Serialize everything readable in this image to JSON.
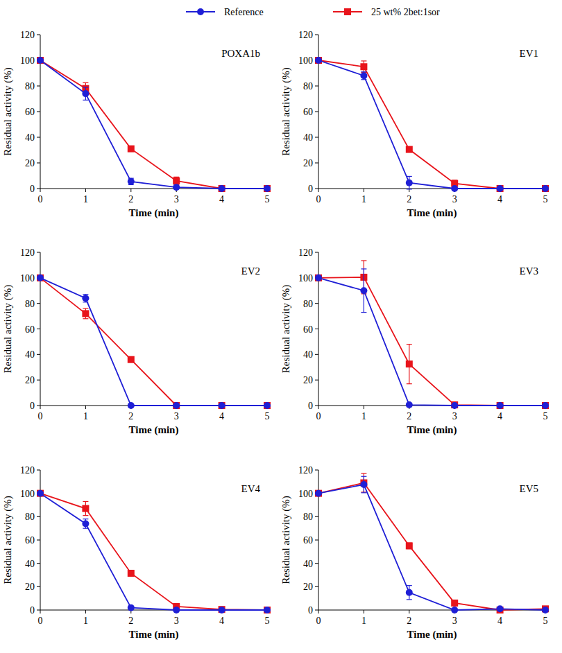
{
  "chart_data": [
    {
      "type": "line",
      "title": "POXA1b",
      "x_label": "Time (min)",
      "y_label": "Residual activity (%)",
      "legend": "top",
      "x": [
        0,
        1,
        2,
        3,
        4,
        5
      ],
      "xlim": [
        0,
        5
      ],
      "xticks": [
        0,
        1,
        2,
        3,
        4,
        5
      ],
      "ylim": [
        0,
        120
      ],
      "yticks": [
        0,
        20,
        40,
        60,
        80,
        100,
        120
      ],
      "series": [
        {
          "name": "Reference",
          "color": "#1f1fd6",
          "marker": "circle",
          "values": [
            100,
            74,
            5.5,
            1,
            0,
            0
          ],
          "error": [
            0,
            5,
            2.5,
            0.5,
            0,
            0
          ]
        },
        {
          "name": "25 wt% 2bet:1sor",
          "color": "#e8141b",
          "marker": "square",
          "values": [
            100,
            78,
            31,
            6,
            0,
            0
          ],
          "error": [
            0,
            4.5,
            1.5,
            3,
            0,
            0
          ]
        }
      ]
    },
    {
      "type": "line",
      "title": "EV1",
      "x_label": "Time (min)",
      "y_label": "Residual activity (%)",
      "x": [
        0,
        1,
        2,
        3,
        4,
        5
      ],
      "xlim": [
        0,
        5
      ],
      "xticks": [
        0,
        1,
        2,
        3,
        4,
        5
      ],
      "ylim": [
        0,
        120
      ],
      "yticks": [
        0,
        20,
        40,
        60,
        80,
        100,
        120
      ],
      "series": [
        {
          "color": "#1f1fd6",
          "marker": "circle",
          "values": [
            100,
            88,
            4.5,
            0,
            0,
            0
          ],
          "error": [
            0,
            3,
            5,
            0,
            0,
            0
          ]
        },
        {
          "color": "#e8141b",
          "marker": "square",
          "values": [
            100,
            95,
            30.5,
            4,
            0,
            0
          ],
          "error": [
            0,
            4.5,
            2,
            2.5,
            0,
            0
          ]
        }
      ]
    },
    {
      "type": "line",
      "title": "EV2",
      "x_label": "Time (min)",
      "y_label": "Residual activity (%)",
      "x": [
        0,
        1,
        2,
        3,
        4,
        5
      ],
      "xlim": [
        0,
        5
      ],
      "xticks": [
        0,
        1,
        2,
        3,
        4,
        5
      ],
      "ylim": [
        0,
        120
      ],
      "yticks": [
        0,
        20,
        40,
        60,
        80,
        100,
        120
      ],
      "series": [
        {
          "color": "#1f1fd6",
          "marker": "circle",
          "values": [
            100,
            84,
            0,
            0,
            0,
            0
          ],
          "error": [
            0,
            3,
            0,
            0,
            0,
            0
          ]
        },
        {
          "color": "#e8141b",
          "marker": "square",
          "values": [
            100,
            72,
            36,
            0,
            0,
            0
          ],
          "error": [
            0,
            4,
            2,
            0,
            0,
            0
          ]
        }
      ]
    },
    {
      "type": "line",
      "title": "EV3",
      "x_label": "Time (min)",
      "y_label": "Residual activity (%)",
      "x": [
        0,
        1,
        2,
        3,
        4,
        5
      ],
      "xlim": [
        0,
        5
      ],
      "xticks": [
        0,
        1,
        2,
        3,
        4,
        5
      ],
      "ylim": [
        0,
        120
      ],
      "yticks": [
        0,
        20,
        40,
        60,
        80,
        100,
        120
      ],
      "series": [
        {
          "color": "#1f1fd6",
          "marker": "circle",
          "values": [
            100,
            90,
            0.5,
            0,
            0,
            0
          ],
          "error": [
            0,
            17,
            0.5,
            0,
            0,
            0
          ]
        },
        {
          "color": "#e8141b",
          "marker": "square",
          "values": [
            100,
            100.5,
            32.5,
            0.5,
            0,
            0
          ],
          "error": [
            0,
            13,
            15.5,
            0.5,
            0,
            0
          ]
        }
      ]
    },
    {
      "type": "line",
      "title": "EV4",
      "x_label": "Time (min)",
      "y_label": "Residual activity (%)",
      "x": [
        0,
        1,
        2,
        3,
        4,
        5
      ],
      "xlim": [
        0,
        5
      ],
      "xticks": [
        0,
        1,
        2,
        3,
        4,
        5
      ],
      "ylim": [
        0,
        120
      ],
      "yticks": [
        0,
        20,
        40,
        60,
        80,
        100,
        120
      ],
      "series": [
        {
          "color": "#1f1fd6",
          "marker": "circle",
          "values": [
            100,
            74,
            2,
            0,
            0,
            0
          ],
          "error": [
            0,
            4,
            0.5,
            0,
            0,
            0
          ]
        },
        {
          "color": "#e8141b",
          "marker": "square",
          "values": [
            100,
            87,
            31.5,
            3,
            0.5,
            0
          ],
          "error": [
            0,
            6,
            1.5,
            1,
            0.5,
            0
          ]
        }
      ]
    },
    {
      "type": "line",
      "title": "EV5",
      "x_label": "Time (min)",
      "y_label": "Residual activity (%)",
      "x": [
        0,
        1,
        2,
        3,
        4,
        5
      ],
      "xlim": [
        0,
        5
      ],
      "xticks": [
        0,
        1,
        2,
        3,
        4,
        5
      ],
      "ylim": [
        0,
        120
      ],
      "yticks": [
        0,
        20,
        40,
        60,
        80,
        100,
        120
      ],
      "series": [
        {
          "color": "#1f1fd6",
          "marker": "circle",
          "values": [
            100,
            107.5,
            15,
            0,
            1,
            0
          ],
          "error": [
            0,
            7,
            6,
            0,
            0.5,
            0
          ]
        },
        {
          "color": "#e8141b",
          "marker": "square",
          "values": [
            100,
            109,
            55,
            6,
            0,
            1
          ],
          "error": [
            0,
            8,
            2.5,
            2,
            1,
            0.5
          ]
        }
      ]
    }
  ]
}
